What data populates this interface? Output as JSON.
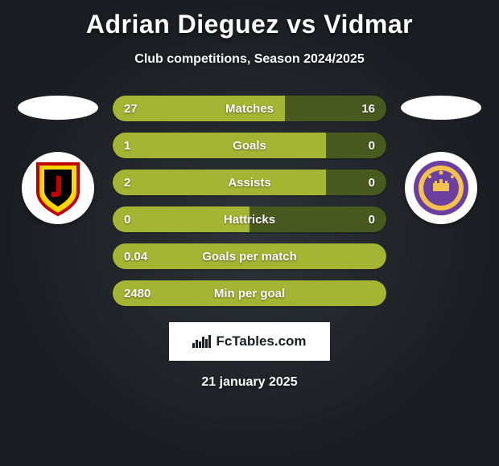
{
  "header": {
    "title": "Adrian Dieguez vs Vidmar",
    "subtitle": "Club competitions, Season 2024/2025"
  },
  "colors": {
    "bar_left": "#a4b534",
    "bar_right": "#4a5a1f",
    "text": "#ffffff"
  },
  "stats": [
    {
      "label": "Matches",
      "left_val": "27",
      "right_val": "16",
      "left_pct": 63,
      "right_pct": 37
    },
    {
      "label": "Goals",
      "left_val": "1",
      "right_val": "0",
      "left_pct": 78,
      "right_pct": 22
    },
    {
      "label": "Assists",
      "left_val": "2",
      "right_val": "0",
      "left_pct": 78,
      "right_pct": 22
    },
    {
      "label": "Hattricks",
      "left_val": "0",
      "right_val": "0",
      "left_pct": 50,
      "right_pct": 50
    },
    {
      "label": "Goals per match",
      "left_val": "0.04",
      "right_val": "",
      "left_pct": 100,
      "right_pct": 0
    },
    {
      "label": "Min per goal",
      "left_val": "2480",
      "right_val": "",
      "left_pct": 100,
      "right_pct": 0
    }
  ],
  "watermark": {
    "text": "FcTables.com"
  },
  "date": "21 january 2025",
  "badges": {
    "left": {
      "name": "jagiellonia-badge",
      "shield_fill": "#ffd700",
      "shield_stroke": "#c00000",
      "inner_fill": "#000000",
      "letter_fill": "#c00000"
    },
    "right": {
      "name": "maribor-badge",
      "outer_fill": "#6b3fa0",
      "ring_fill": "#f2c14e",
      "inner_fill": "#6b3fa0",
      "castle_fill": "#f2c14e"
    }
  }
}
